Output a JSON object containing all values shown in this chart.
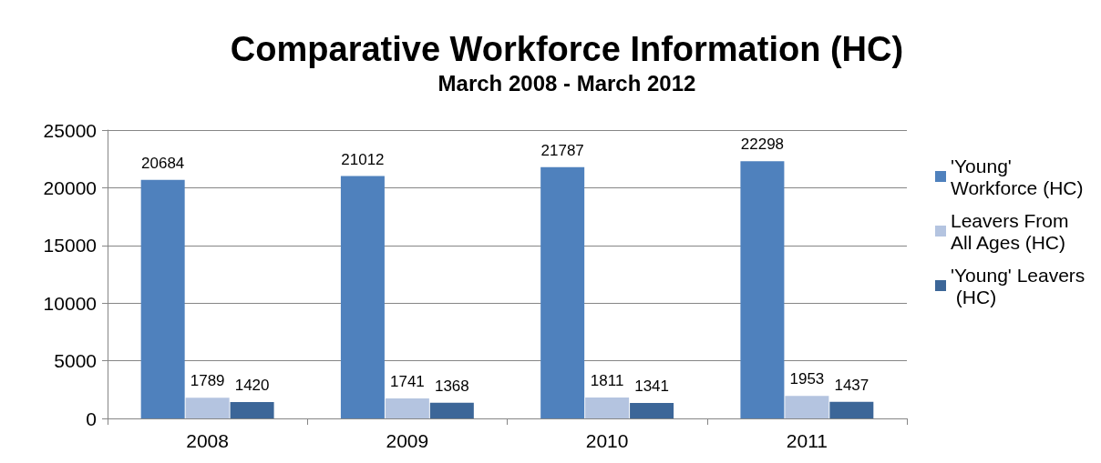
{
  "chart_data": {
    "type": "bar",
    "title": "Comparative Workforce Information (HC)",
    "subtitle": "March 2008 - March 2012",
    "categories": [
      "2008",
      "2009",
      "2010",
      "2011"
    ],
    "series": [
      {
        "name": "'Young' Workforce (HC)",
        "color": "#4f81bd",
        "values": [
          20684,
          21012,
          21787,
          22298
        ]
      },
      {
        "name": "Leavers From All Ages (HC)",
        "color": "#b4c4e0",
        "values": [
          1789,
          1741,
          1811,
          1953
        ]
      },
      {
        "name": "'Young' Leavers (HC)",
        "color": "#3c6698",
        "values": [
          1420,
          1368,
          1341,
          1437
        ]
      }
    ],
    "ylim": [
      0,
      25000
    ],
    "yticks": [
      0,
      5000,
      10000,
      15000,
      20000,
      25000
    ],
    "grid": "y",
    "legend": "right",
    "data_labels": true
  }
}
